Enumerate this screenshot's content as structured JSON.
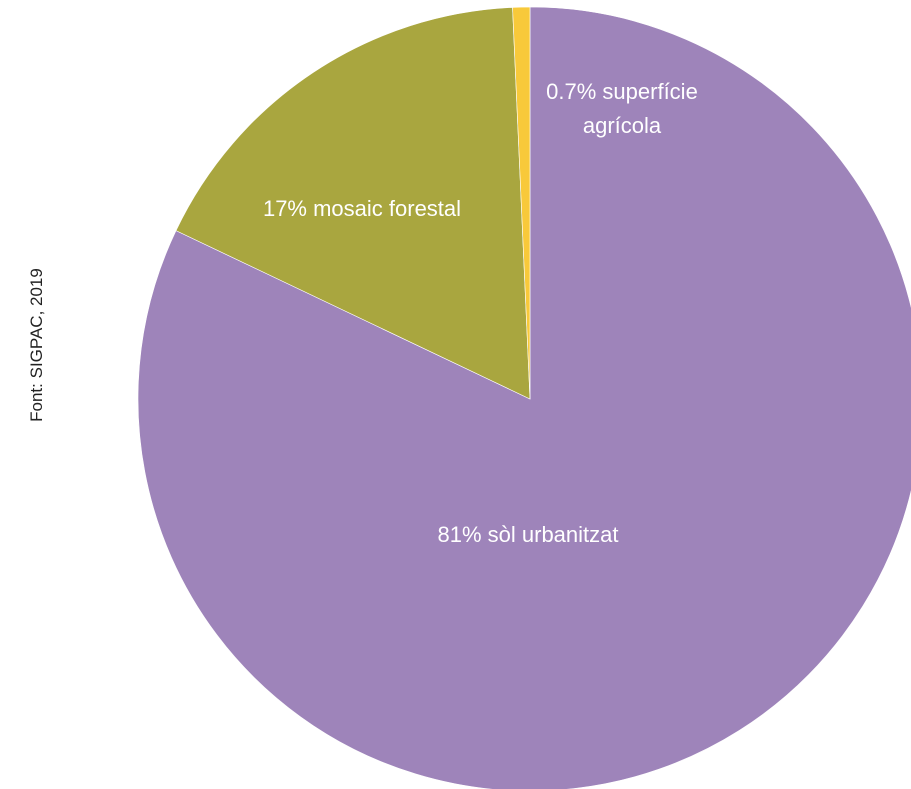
{
  "chart_data": {
    "type": "pie",
    "title": "",
    "source": "Font: SIGPAC, 2019",
    "slices": [
      {
        "label_lines": [
          "81% sòl urbanitzat"
        ],
        "value": 81,
        "color": "#9e84ba"
      },
      {
        "label_lines": [
          "17% mosaic forestal"
        ],
        "value": 17,
        "color": "#a9a63f"
      },
      {
        "label_lines": [
          "0.7% superfície",
          "agrícola"
        ],
        "value": 0.7,
        "color": "#f8c93a"
      }
    ]
  }
}
